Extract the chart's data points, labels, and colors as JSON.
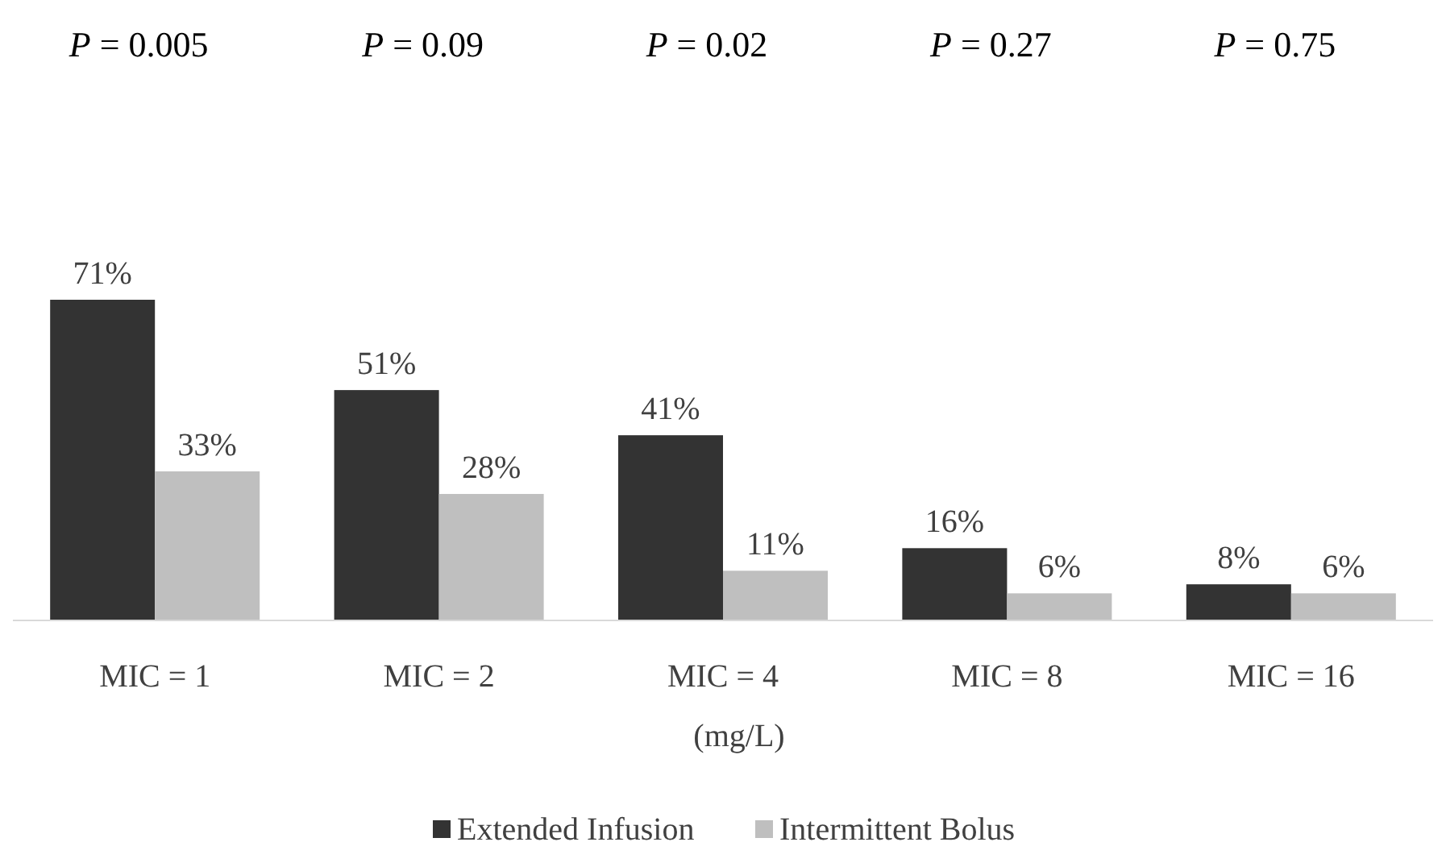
{
  "chart_data": {
    "type": "bar",
    "xlabel": "(mg/L)",
    "categories": [
      "MIC = 1",
      "MIC = 2",
      "MIC = 4",
      "MIC = 8",
      "MIC = 16"
    ],
    "series": [
      {
        "name": "Extended Infusion",
        "color": "#333333",
        "values": [
          71,
          51,
          41,
          16,
          8
        ],
        "value_labels": [
          "71%",
          "51%",
          "41%",
          "16%",
          "8%"
        ]
      },
      {
        "name": "Intermittent Bolus",
        "color": "#bfbfbf",
        "values": [
          33,
          28,
          11,
          6,
          6
        ],
        "value_labels": [
          "33%",
          "28%",
          "11%",
          "6%",
          "6%"
        ]
      }
    ],
    "annotations": [
      "P = 0.005",
      "P = 0.09",
      "P = 0.02",
      "P = 0.27",
      "P = 0.75"
    ],
    "legend": "bottom",
    "grid": false
  }
}
